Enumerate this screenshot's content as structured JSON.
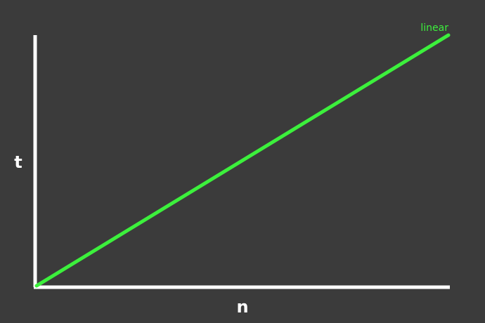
{
  "chart_data": {
    "type": "line",
    "title": "",
    "xlabel": "n",
    "ylabel": "t",
    "xlim": [
      0,
      1
    ],
    "ylim": [
      0,
      1
    ],
    "grid": false,
    "legend": "none",
    "series": [
      {
        "name": "linear",
        "color": "#3cf03c",
        "x": [
          0,
          1
        ],
        "y": [
          0,
          1
        ]
      }
    ]
  },
  "colors": {
    "background": "#3b3b3b",
    "axis": "#ffffff",
    "series": "#3cf03c"
  }
}
